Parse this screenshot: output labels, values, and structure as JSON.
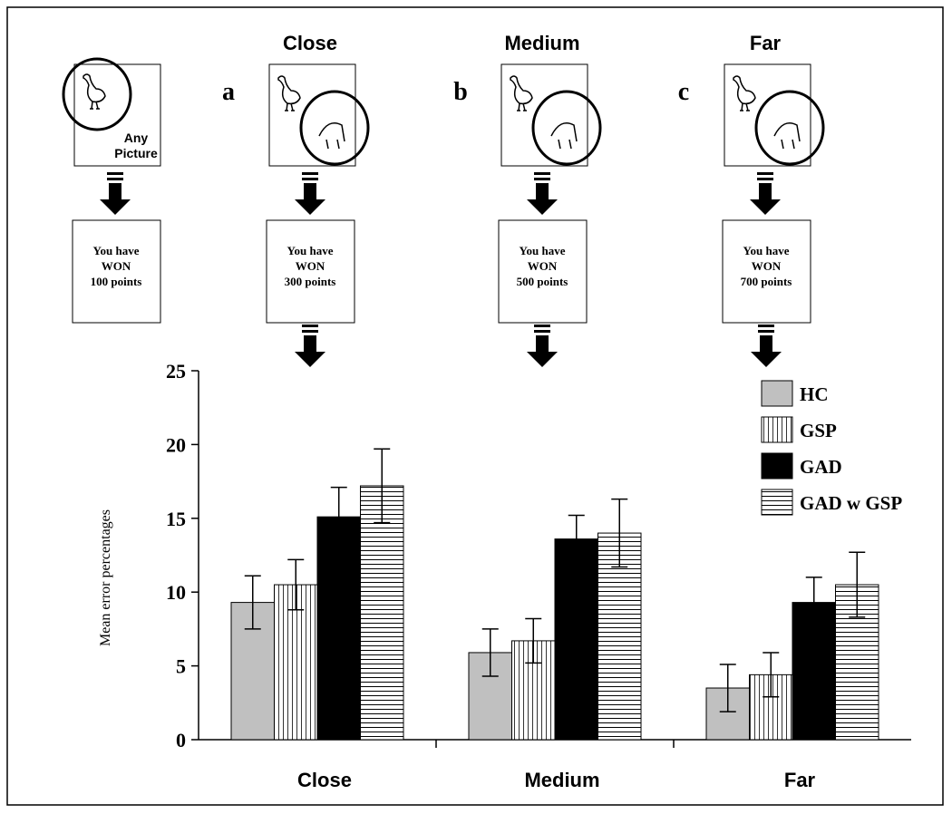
{
  "panels": [
    {
      "picture_label": [
        "Any",
        "Picture"
      ],
      "reward": [
        "You have",
        "WON",
        "100 points"
      ]
    },
    {
      "title": "Close",
      "letter": "a",
      "reward": [
        "You have",
        "WON",
        "300 points"
      ]
    },
    {
      "title": "Medium",
      "letter": "b",
      "reward": [
        "You have",
        "WON",
        "500 points"
      ]
    },
    {
      "title": "Far",
      "letter": "c",
      "reward": [
        "You have",
        "WON",
        "700 points"
      ]
    }
  ],
  "chart_data": {
    "type": "bar",
    "y_label": "Mean error percentages",
    "categories": [
      "Close",
      "Medium",
      "Far"
    ],
    "series": [
      {
        "name": "HC",
        "color": "#c0c0c0",
        "hatch": "none",
        "values": [
          9.3,
          5.9,
          3.5
        ],
        "errors": [
          1.8,
          1.6,
          1.6
        ]
      },
      {
        "name": "GSP",
        "color": "#ffffff",
        "hatch": "vertical",
        "values": [
          10.5,
          6.7,
          4.4
        ],
        "errors": [
          1.7,
          1.5,
          1.5
        ]
      },
      {
        "name": "GAD",
        "color": "#000000",
        "hatch": "none",
        "values": [
          15.1,
          13.6,
          9.3
        ],
        "errors": [
          2.0,
          1.6,
          1.7
        ]
      },
      {
        "name": "GAD w GSP",
        "color": "#ffffff",
        "hatch": "horizontal",
        "values": [
          17.2,
          14.0,
          10.5
        ],
        "errors": [
          2.5,
          2.3,
          2.2
        ]
      }
    ],
    "ylim": [
      0,
      25
    ],
    "yticks": [
      0,
      5,
      10,
      15,
      20,
      25
    ],
    "grid": false,
    "legend": "top-right"
  }
}
